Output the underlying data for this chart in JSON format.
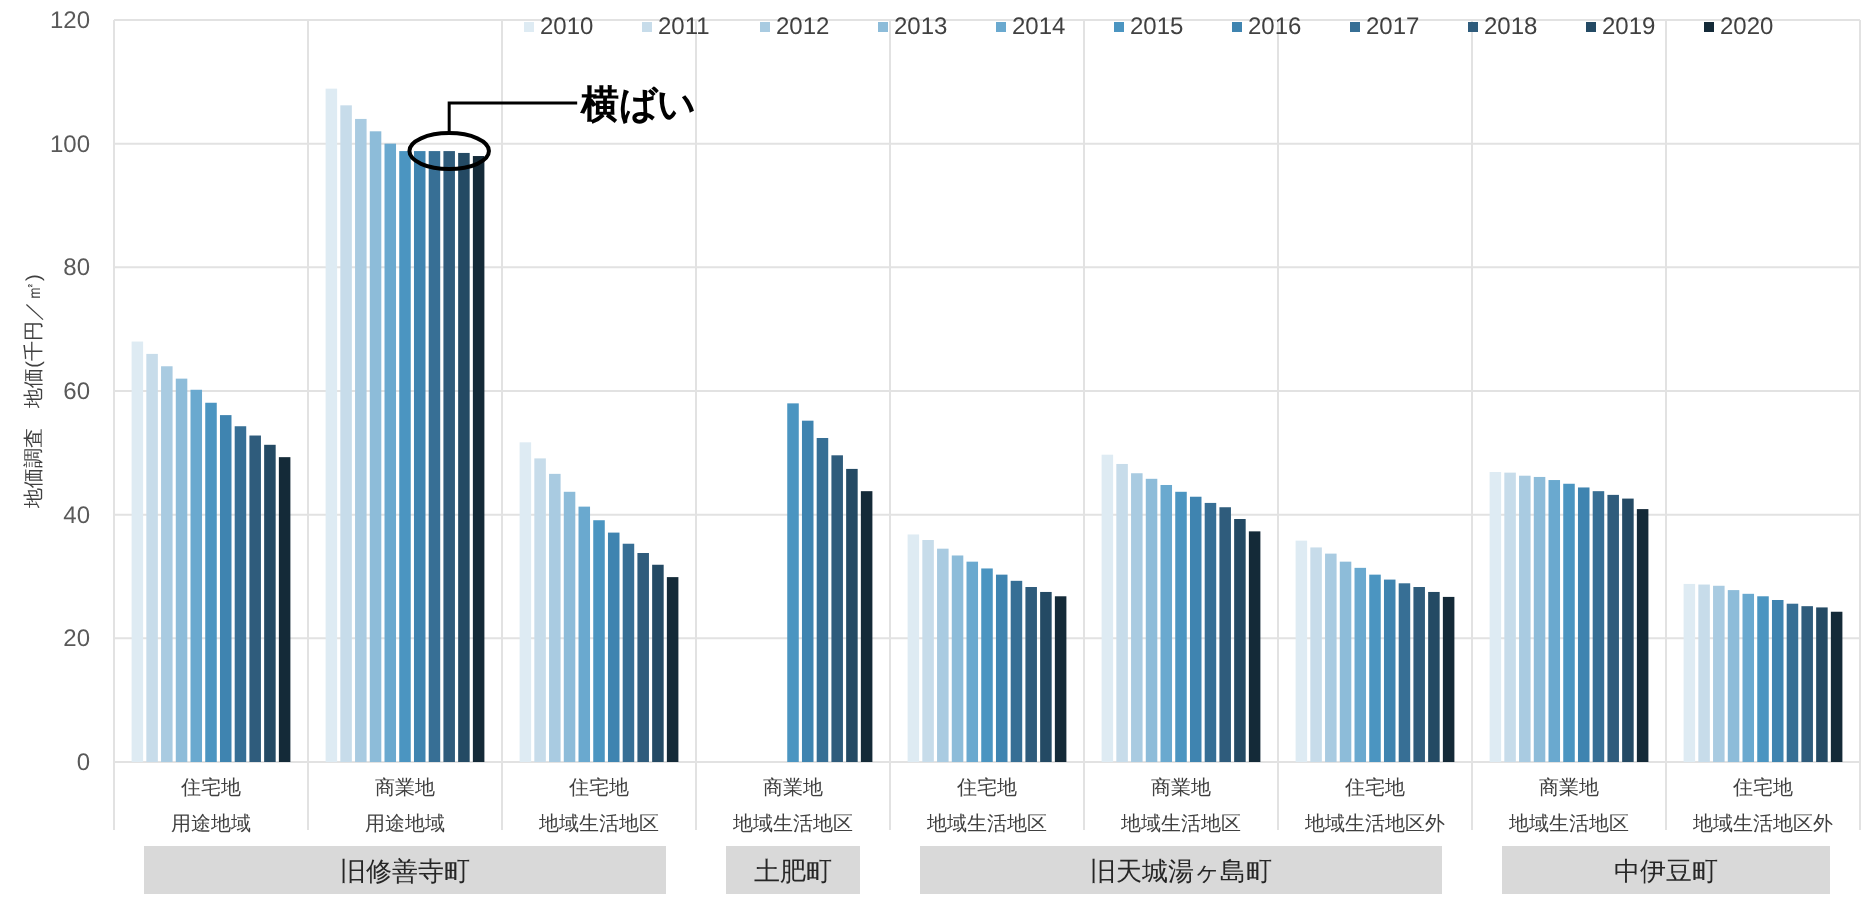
{
  "chart_data": {
    "type": "bar",
    "ylabel": "地価調査　地価(千円／㎡)",
    "categories": [
      "住宅地用途地域",
      "商業地用途地域",
      "住宅地地域生活地区",
      "商業地地域生活地区",
      "住宅地地域生活地区",
      "商業地地域生活地区",
      "住宅地地域生活地区外",
      "商業地地域生活地区",
      "住宅地地域生活地区外"
    ],
    "series": [
      {
        "name": "2010",
        "color": "#deebf3",
        "values": [
          68,
          108.9,
          51.7,
          null,
          36.8,
          49.7,
          35.8,
          46.9,
          28.8
        ]
      },
      {
        "name": "2011",
        "color": "#c7dcea",
        "values": [
          66,
          106.2,
          49.1,
          null,
          35.9,
          48.2,
          34.7,
          46.8,
          28.7
        ]
      },
      {
        "name": "2012",
        "color": "#a9cbe1",
        "values": [
          64,
          104,
          46.6,
          null,
          34.5,
          46.7,
          33.7,
          46.3,
          28.5
        ]
      },
      {
        "name": "2013",
        "color": "#8dbcd9",
        "values": [
          62,
          102,
          43.7,
          null,
          33.4,
          45.8,
          32.4,
          46.1,
          27.8
        ]
      },
      {
        "name": "2014",
        "color": "#6aa9cf",
        "values": [
          60.2,
          100,
          41.3,
          null,
          32.4,
          44.8,
          31.4,
          45.6,
          27.2
        ]
      },
      {
        "name": "2015",
        "color": "#4b95c1",
        "values": [
          58.1,
          98.8,
          39.1,
          58,
          31.3,
          43.7,
          30.3,
          45,
          26.8
        ]
      },
      {
        "name": "2016",
        "color": "#3f84b0",
        "values": [
          56.1,
          98.8,
          37.1,
          55.2,
          30.3,
          42.9,
          29.5,
          44.4,
          26.2
        ]
      },
      {
        "name": "2017",
        "color": "#376f95",
        "values": [
          54.3,
          98.8,
          35.3,
          52.4,
          29.3,
          41.9,
          28.9,
          43.8,
          25.6
        ]
      },
      {
        "name": "2018",
        "color": "#2f5c7c",
        "values": [
          52.8,
          98.8,
          33.8,
          49.6,
          28.3,
          41.2,
          28.3,
          43.2,
          25.2
        ]
      },
      {
        "name": "2019",
        "color": "#244a64",
        "values": [
          51.3,
          98.5,
          31.9,
          47.4,
          27.5,
          39.3,
          27.5,
          42.6,
          25
        ]
      },
      {
        "name": "2020",
        "color": "#142a38",
        "values": [
          49.3,
          98,
          29.9,
          43.8,
          26.8,
          37.3,
          26.7,
          40.9,
          24.3
        ]
      }
    ],
    "ylim": [
      0,
      120
    ],
    "yticks": [
      0,
      20,
      40,
      60,
      80,
      100,
      120
    ],
    "grid": true,
    "legend": "top",
    "annotations": [
      "横ばい",
      "旧修善寺町",
      "土肥町",
      "旧天城湯ヶ島町",
      "中伊豆町"
    ]
  }
}
